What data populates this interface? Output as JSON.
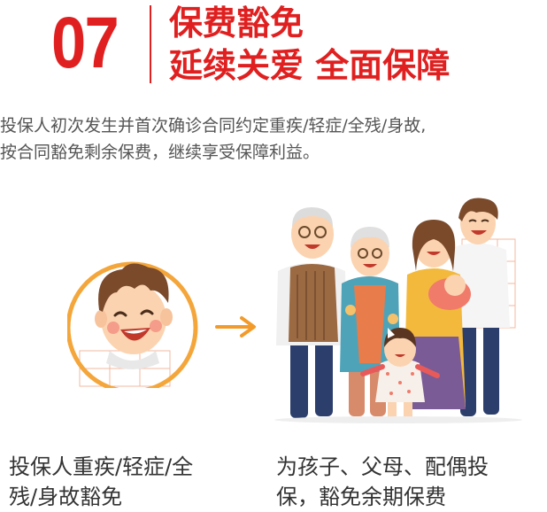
{
  "header": {
    "number": "07",
    "title_line1": "保费豁免",
    "title_line2": "延续关爱  全面保障"
  },
  "description": {
    "line1": "投保人初次发生并首次确诊合同约定重疾/轻症/全残/身故,",
    "line2": "按合同豁免剩余保费，继续享受保障利益。"
  },
  "captions": {
    "left_line1": "投保人重疾/轻症/全",
    "left_line2": "残/身故豁免",
    "right_line1": "为孩子、父母、配偶投",
    "right_line2": "保，豁免余期保费"
  },
  "icons": {
    "arrow": "right-arrow-icon",
    "policyholder": "policyholder-face",
    "family": "family-group"
  },
  "colors": {
    "accent_red": "#e02020",
    "ring_orange": "#f4a63a",
    "arrow_orange": "#f29b2b"
  }
}
